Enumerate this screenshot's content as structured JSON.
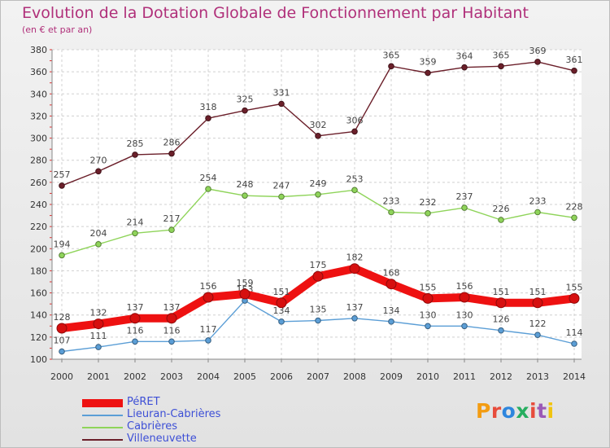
{
  "title": "Evolution de la Dotation Globale de Fonctionnement par Habitant",
  "subtitle": "(en € et par an)",
  "brand": {
    "text": "Proxiti",
    "colors": [
      "#f39c12",
      "#e74c3c",
      "#2e86de",
      "#27ae60",
      "#e74c3c",
      "#9b59b6",
      "#f1c40f"
    ]
  },
  "chart_data": {
    "type": "line",
    "title": "Evolution de la Dotation Globale de Fonctionnement par Habitant",
    "subtitle": "(en € et par an)",
    "x": [
      "2000",
      "2001",
      "2002",
      "2003",
      "2004",
      "2005",
      "2006",
      "2007",
      "2008",
      "2009",
      "2010",
      "2011",
      "2012",
      "2013",
      "2014"
    ],
    "ylim": [
      100,
      380
    ],
    "yticks": [
      100,
      120,
      140,
      160,
      180,
      200,
      220,
      240,
      260,
      280,
      300,
      320,
      340,
      360,
      380
    ],
    "grid": true,
    "legend_position": "bottom-left",
    "series": [
      {
        "name": "Villeneuvette",
        "color": "#6b1f2a",
        "values": [
          257,
          270,
          285,
          286,
          318,
          325,
          331,
          302,
          306,
          365,
          359,
          364,
          365,
          369,
          361
        ]
      },
      {
        "name": "Cabrières",
        "color": "#8fd45a",
        "values": [
          194,
          204,
          214,
          217,
          254,
          248,
          247,
          249,
          253,
          233,
          232,
          237,
          226,
          233,
          228
        ]
      },
      {
        "name": "Lieuran-Cabrières",
        "color": "#5b9ed6",
        "values": [
          107,
          111,
          116,
          116,
          117,
          153,
          134,
          135,
          137,
          134,
          130,
          130,
          126,
          122,
          114
        ]
      },
      {
        "name": "PéRET",
        "color": "#ee1111",
        "values": [
          128,
          132,
          137,
          137,
          156,
          159,
          151,
          175,
          182,
          168,
          155,
          156,
          151,
          151,
          155
        ]
      }
    ]
  }
}
